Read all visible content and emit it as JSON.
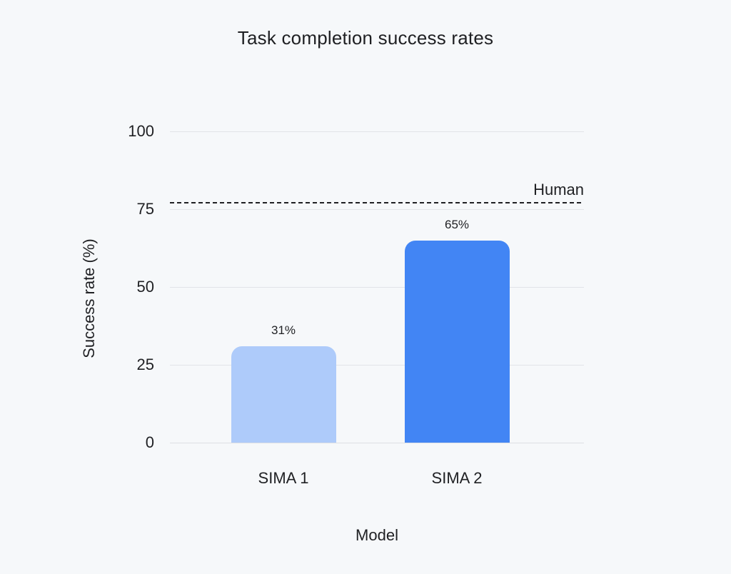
{
  "page": {
    "background": "#F6F8FA"
  },
  "chart_data": {
    "type": "bar",
    "title": "Task completion success rates",
    "xlabel": "Model",
    "ylabel": "Success rate (%)",
    "categories": [
      "SIMA 1",
      "SIMA 2"
    ],
    "values": [
      31,
      65
    ],
    "bar_labels": [
      "31%",
      "65%"
    ],
    "bar_colors": [
      "#AECBFA",
      "#4285F4"
    ],
    "yticks": [
      0,
      25,
      50,
      75,
      100
    ],
    "ylim": [
      0,
      100
    ],
    "grid": true,
    "legend": "none",
    "reference_line": {
      "value": 77,
      "label": "Human",
      "style": "dashed",
      "color": "#1F2023"
    },
    "colors": {
      "background": "#F6F8FA",
      "gridline": "#E2E4E8",
      "baseline": "#DDE0E4",
      "text": "#1F2023"
    }
  }
}
